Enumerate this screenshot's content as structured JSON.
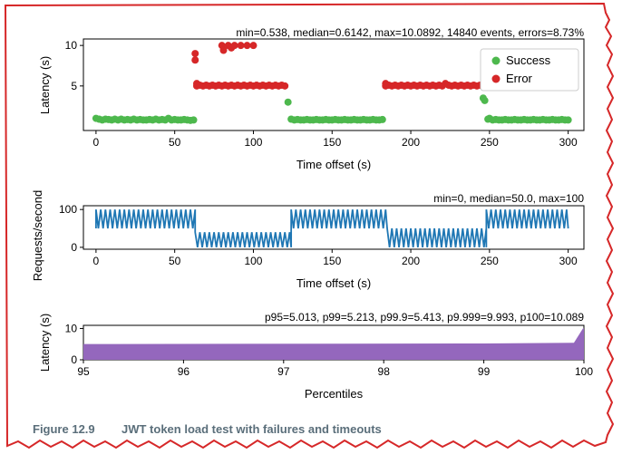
{
  "figure": {
    "caption_number": "Figure 12.9",
    "caption_text": "JWT token load test with failures and timeouts"
  },
  "chart_data": [
    {
      "type": "scatter",
      "stats_text": "min=0.538, median=0.6142, max=10.0892, 14840 events, errors=8.73%",
      "xlabel": "Time offset (s)",
      "ylabel": "Latency (s)",
      "xlim": [
        -8,
        310
      ],
      "ylim": [
        -0.5,
        10.8
      ],
      "xticks": [
        0,
        50,
        100,
        150,
        200,
        250,
        300
      ],
      "yticks": [
        5,
        10
      ],
      "legend": {
        "position": "top-right"
      },
      "series": [
        {
          "name": "Success",
          "color": "#4db84d",
          "points": [
            [
              0,
              1.0
            ],
            [
              2,
              0.9
            ],
            [
              4,
              0.8
            ],
            [
              6,
              0.9
            ],
            [
              8,
              0.85
            ],
            [
              10,
              0.8
            ],
            [
              12,
              0.9
            ],
            [
              14,
              0.8
            ],
            [
              16,
              0.9
            ],
            [
              18,
              0.8
            ],
            [
              20,
              0.85
            ],
            [
              22,
              0.8
            ],
            [
              24,
              0.9
            ],
            [
              26,
              0.8
            ],
            [
              28,
              0.85
            ],
            [
              30,
              0.8
            ],
            [
              32,
              0.8
            ],
            [
              34,
              0.85
            ],
            [
              36,
              0.8
            ],
            [
              38,
              0.9
            ],
            [
              40,
              0.8
            ],
            [
              42,
              0.85
            ],
            [
              44,
              0.8
            ],
            [
              46,
              1.0
            ],
            [
              48,
              0.8
            ],
            [
              50,
              0.85
            ],
            [
              52,
              0.8
            ],
            [
              54,
              0.8
            ],
            [
              56,
              0.85
            ],
            [
              58,
              0.8
            ],
            [
              60,
              0.75
            ],
            [
              62,
              0.8
            ],
            [
              122,
              3.0
            ],
            [
              124,
              0.9
            ],
            [
              126,
              0.8
            ],
            [
              128,
              0.85
            ],
            [
              130,
              0.8
            ],
            [
              132,
              0.8
            ],
            [
              134,
              0.85
            ],
            [
              136,
              0.8
            ],
            [
              138,
              0.8
            ],
            [
              140,
              0.85
            ],
            [
              142,
              0.8
            ],
            [
              144,
              0.8
            ],
            [
              146,
              0.85
            ],
            [
              148,
              0.8
            ],
            [
              150,
              0.8
            ],
            [
              152,
              0.85
            ],
            [
              154,
              0.8
            ],
            [
              156,
              0.8
            ],
            [
              158,
              0.85
            ],
            [
              160,
              0.8
            ],
            [
              162,
              0.8
            ],
            [
              164,
              0.85
            ],
            [
              166,
              0.8
            ],
            [
              168,
              0.8
            ],
            [
              170,
              0.85
            ],
            [
              172,
              0.8
            ],
            [
              174,
              0.8
            ],
            [
              176,
              0.85
            ],
            [
              178,
              0.8
            ],
            [
              180,
              0.8
            ],
            [
              182,
              0.85
            ],
            [
              246,
              3.5
            ],
            [
              247,
              3.2
            ],
            [
              249,
              0.9
            ],
            [
              250,
              1.0
            ],
            [
              252,
              0.8
            ],
            [
              254,
              0.85
            ],
            [
              256,
              0.8
            ],
            [
              258,
              0.8
            ],
            [
              260,
              0.85
            ],
            [
              262,
              0.8
            ],
            [
              264,
              0.8
            ],
            [
              266,
              0.85
            ],
            [
              268,
              0.8
            ],
            [
              270,
              0.8
            ],
            [
              272,
              0.85
            ],
            [
              274,
              0.8
            ],
            [
              276,
              0.8
            ],
            [
              278,
              0.85
            ],
            [
              280,
              0.8
            ],
            [
              282,
              0.8
            ],
            [
              284,
              0.85
            ],
            [
              286,
              0.8
            ],
            [
              288,
              0.8
            ],
            [
              290,
              0.85
            ],
            [
              292,
              0.8
            ],
            [
              294,
              0.8
            ],
            [
              296,
              0.85
            ],
            [
              298,
              0.8
            ],
            [
              300,
              0.8
            ]
          ]
        },
        {
          "name": "Error",
          "color": "#d62728",
          "points": [
            [
              63,
              9.0
            ],
            [
              63,
              8.2
            ],
            [
              64,
              5.3
            ],
            [
              64,
              5.0
            ],
            [
              66,
              5.1
            ],
            [
              68,
              5.0
            ],
            [
              70,
              5.1
            ],
            [
              72,
              5.0
            ],
            [
              74,
              5.1
            ],
            [
              76,
              5.0
            ],
            [
              78,
              5.1
            ],
            [
              80,
              5.0
            ],
            [
              82,
              5.1
            ],
            [
              84,
              5.0
            ],
            [
              86,
              5.1
            ],
            [
              88,
              5.0
            ],
            [
              90,
              5.1
            ],
            [
              92,
              5.0
            ],
            [
              94,
              5.1
            ],
            [
              96,
              5.0
            ],
            [
              98,
              5.1
            ],
            [
              100,
              5.0
            ],
            [
              102,
              5.1
            ],
            [
              104,
              5.0
            ],
            [
              106,
              5.1
            ],
            [
              108,
              5.0
            ],
            [
              110,
              5.1
            ],
            [
              112,
              5.0
            ],
            [
              114,
              5.1
            ],
            [
              116,
              5.0
            ],
            [
              118,
              5.1
            ],
            [
              120,
              5.0
            ],
            [
              80,
              10.0
            ],
            [
              81,
              9.4
            ],
            [
              84,
              10.0
            ],
            [
              86,
              9.7
            ],
            [
              88,
              10.0
            ],
            [
              92,
              10.0
            ],
            [
              96,
              10.0
            ],
            [
              100,
              10.0
            ],
            [
              184,
              5.3
            ],
            [
              184,
              5.0
            ],
            [
              186,
              5.1
            ],
            [
              188,
              5.0
            ],
            [
              190,
              5.1
            ],
            [
              192,
              5.0
            ],
            [
              194,
              5.1
            ],
            [
              196,
              5.0
            ],
            [
              198,
              5.1
            ],
            [
              200,
              5.0
            ],
            [
              202,
              5.1
            ],
            [
              204,
              5.0
            ],
            [
              206,
              5.1
            ],
            [
              208,
              5.0
            ],
            [
              210,
              5.1
            ],
            [
              212,
              5.0
            ],
            [
              214,
              5.1
            ],
            [
              216,
              5.0
            ],
            [
              218,
              5.1
            ],
            [
              220,
              5.0
            ],
            [
              222,
              5.3
            ],
            [
              224,
              5.1
            ],
            [
              226,
              5.0
            ],
            [
              228,
              5.1
            ],
            [
              230,
              5.0
            ],
            [
              232,
              5.1
            ],
            [
              234,
              5.0
            ],
            [
              236,
              5.1
            ],
            [
              238,
              5.0
            ],
            [
              240,
              5.1
            ],
            [
              242,
              5.0
            ],
            [
              244,
              5.1
            ]
          ]
        }
      ]
    },
    {
      "type": "line",
      "stats_text": "min=0, median=50.0, max=100",
      "xlabel": "Time offset (s)",
      "ylabel": "Requests/second",
      "xlim": [
        -8,
        310
      ],
      "ylim": [
        -5,
        110
      ],
      "xticks": [
        0,
        50,
        100,
        150,
        200,
        250,
        300
      ],
      "yticks": [
        0,
        100
      ],
      "series": [
        {
          "color": "#1f77b4",
          "segments": [
            {
              "x_start": 0,
              "x_end": 63,
              "period": 3,
              "low": 50,
              "high": 100
            },
            {
              "x_start": 63,
              "x_end": 124,
              "period": 3,
              "low": 0,
              "high": 40
            },
            {
              "x_start": 124,
              "x_end": 185,
              "period": 3,
              "low": 50,
              "high": 100
            },
            {
              "x_start": 185,
              "x_end": 248,
              "period": 3,
              "low": 0,
              "high": 50
            },
            {
              "x_start": 248,
              "x_end": 300,
              "period": 3,
              "low": 50,
              "high": 100
            }
          ]
        }
      ]
    },
    {
      "type": "area",
      "stats_text": "p95=5.013, p99=5.213, p99.9=5.413, p9.999=9.993, p100=10.089",
      "xlabel": "Percentiles",
      "ylabel": "Latency (s)",
      "xlim": [
        95,
        100
      ],
      "ylim": [
        0,
        11
      ],
      "xticks": [
        95,
        96,
        97,
        98,
        99,
        100
      ],
      "yticks": [
        0,
        10
      ],
      "color": "#9467bd",
      "x": [
        95,
        99,
        99.9,
        99.99,
        100
      ],
      "y": [
        5.013,
        5.213,
        5.413,
        9.993,
        10.089
      ]
    }
  ]
}
